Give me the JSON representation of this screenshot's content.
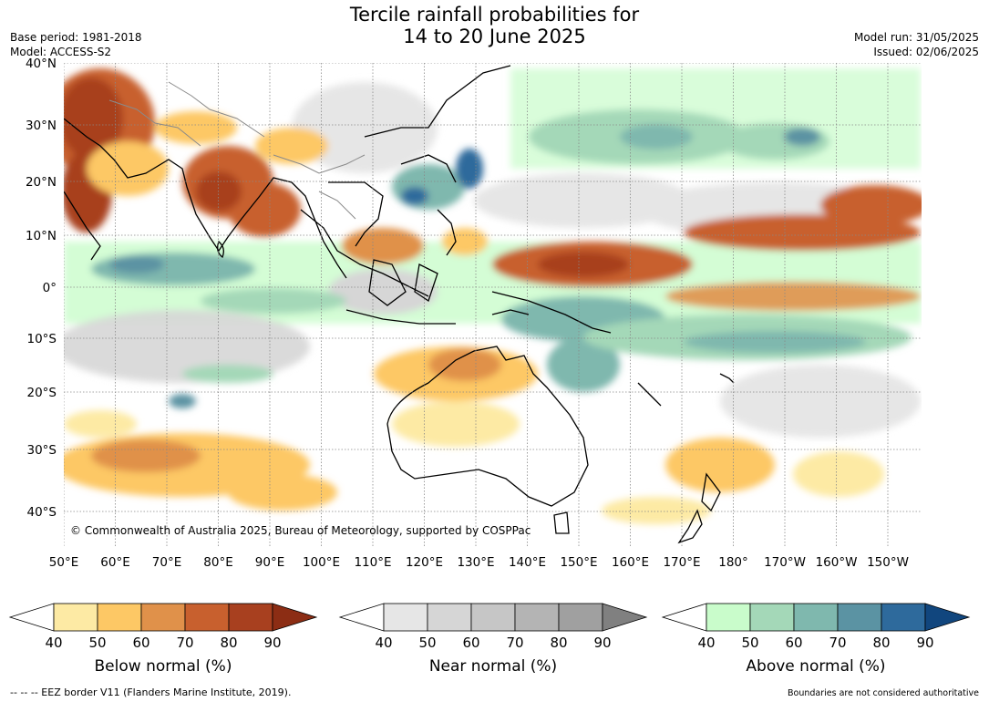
{
  "header": {
    "title_line1": "Tercile rainfall probabilities for",
    "title_line2": "14 to 20 June 2025",
    "base_period": "Base period: 1981-2018",
    "model": "Model: ACCESS-S2",
    "model_run": "Model run: 31/05/2025",
    "issued": "Issued: 02/06/2025"
  },
  "map": {
    "lat_labels": [
      "40°N",
      "30°N",
      "20°N",
      "10°N",
      "0°",
      "10°S",
      "20°S",
      "30°S",
      "40°S"
    ],
    "lon_labels": [
      "50°E",
      "60°E",
      "70°E",
      "80°E",
      "90°E",
      "100°E",
      "110°E",
      "120°E",
      "130°E",
      "140°E",
      "150°E",
      "160°E",
      "170°E",
      "180°",
      "170°W",
      "160°W",
      "150°W"
    ],
    "credit": "© Commonwealth of Australia 2025, Bureau of Meteorology, supported by COSPPac"
  },
  "legends": [
    {
      "title": "Below normal (%)",
      "ticks": [
        "40",
        "50",
        "60",
        "70",
        "80",
        "90"
      ],
      "colors": [
        "#fdeaa4",
        "#fdc865",
        "#e0914a",
        "#c8602e",
        "#a8401f",
        "#8c2d14"
      ]
    },
    {
      "title": "Near normal (%)",
      "ticks": [
        "40",
        "50",
        "60",
        "70",
        "80",
        "90"
      ],
      "colors": [
        "#e6e6e6",
        "#d6d6d6",
        "#c6c6c6",
        "#b4b4b4",
        "#a0a0a0",
        "#808080"
      ]
    },
    {
      "title": "Above normal (%)",
      "ticks": [
        "40",
        "50",
        "60",
        "70",
        "80",
        "90"
      ],
      "colors": [
        "#c9fccb",
        "#a4d8b8",
        "#7fb8ae",
        "#5b93a3",
        "#2e6a9c",
        "#11467e"
      ]
    }
  ],
  "footer": {
    "eez_note": "--  --  -- EEZ border V11 (Flanders Marine Institute, 2019).",
    "boundaries_note": "Boundaries are not considered authoritative"
  }
}
